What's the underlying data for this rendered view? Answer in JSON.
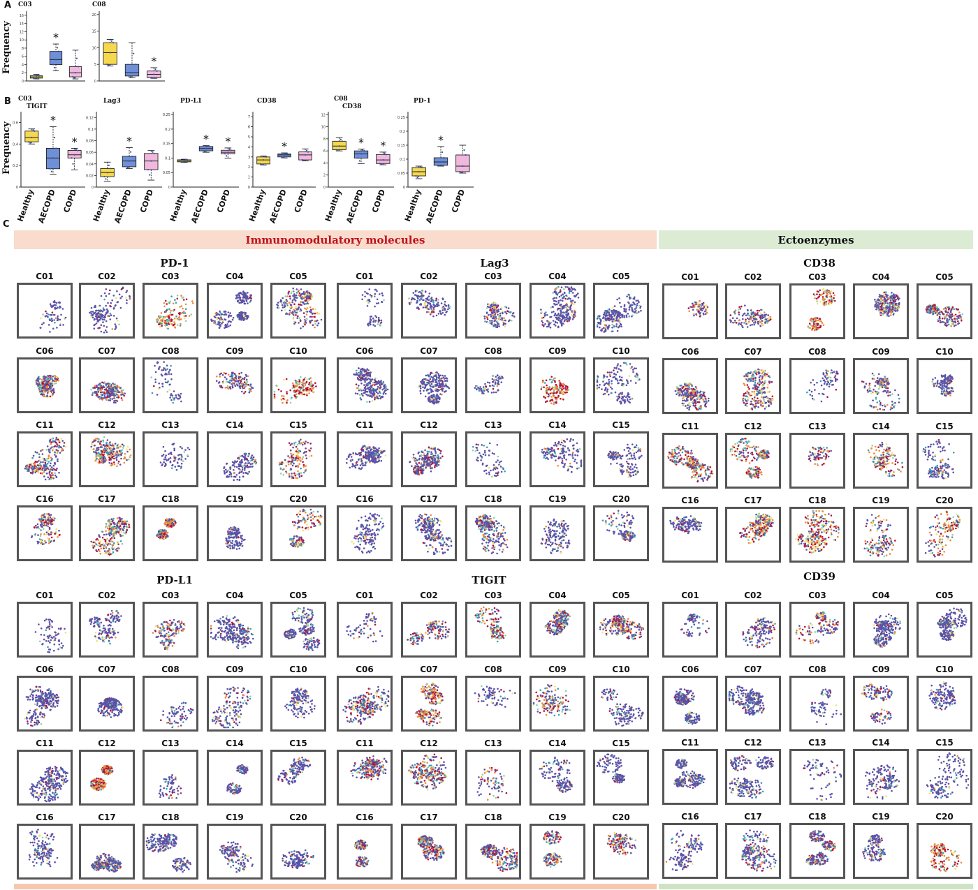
{
  "panels": {
    "A": "A",
    "B": "B",
    "C": "C"
  },
  "freq_label": "Frequency",
  "groups": [
    "Healthy",
    "AECOPD",
    "COPD"
  ],
  "colors": {
    "Healthy": "#f5d84e",
    "AECOPD": "#6f8fd6",
    "COPD": "#f0b8dc",
    "banner_left": "#f9dccd",
    "banner_right": "#dcecd4",
    "banner_left_text": "#c0111b",
    "banner_right_text": "#111111"
  },
  "chart_data": [
    {
      "type": "box",
      "panel": "A",
      "title": "C03",
      "ylim": [
        0,
        17
      ],
      "yticks": [
        0,
        2,
        4,
        6,
        8,
        10,
        12,
        14,
        16
      ],
      "series": [
        {
          "group": "Healthy",
          "min": 0.5,
          "q1": 0.7,
          "median": 1.0,
          "q3": 1.3,
          "max": 1.6,
          "star": false
        },
        {
          "group": "AECOPD",
          "min": 2.5,
          "q1": 4.0,
          "median": 5.2,
          "q3": 7.2,
          "max": 9.0,
          "star": true
        },
        {
          "group": "COPD",
          "min": 0.5,
          "q1": 1.0,
          "median": 2.0,
          "q3": 3.5,
          "max": 7.5,
          "star": false
        }
      ]
    },
    {
      "type": "box",
      "panel": "A",
      "title": "C08",
      "ylim": [
        0,
        21
      ],
      "yticks": [
        0,
        5,
        10,
        15,
        20
      ],
      "series": [
        {
          "group": "Healthy",
          "min": 4.5,
          "q1": 5.0,
          "median": 8.5,
          "q3": 11.5,
          "max": 12.5,
          "star": false
        },
        {
          "group": "AECOPD",
          "min": 1.0,
          "q1": 1.5,
          "median": 2.5,
          "q3": 5.0,
          "max": 11.5,
          "star": false
        },
        {
          "group": "COPD",
          "min": 0.8,
          "q1": 1.0,
          "median": 2.0,
          "q3": 3.0,
          "max": 4.0,
          "star": true
        }
      ]
    },
    {
      "type": "box",
      "panel": "B",
      "supertitle": "C03",
      "title": "TIGIT",
      "ylim": [
        0,
        0.7
      ],
      "yticks": [
        0,
        0.2,
        0.4,
        0.6
      ],
      "series": [
        {
          "group": "Healthy",
          "min": 0.4,
          "q1": 0.42,
          "median": 0.46,
          "q3": 0.52,
          "max": 0.54,
          "star": false
        },
        {
          "group": "AECOPD",
          "min": 0.12,
          "q1": 0.17,
          "median": 0.27,
          "q3": 0.36,
          "max": 0.56,
          "star": true
        },
        {
          "group": "COPD",
          "min": 0.16,
          "q1": 0.27,
          "median": 0.3,
          "q3": 0.34,
          "max": 0.36,
          "star": true
        }
      ]
    },
    {
      "type": "box",
      "panel": "B",
      "title": "Lag3",
      "ylim": [
        0,
        0.13
      ],
      "yticks": [
        0,
        0.02,
        0.04,
        0.06,
        0.08,
        0.1,
        0.12
      ],
      "series": [
        {
          "group": "Healthy",
          "min": 0.01,
          "q1": 0.018,
          "median": 0.025,
          "q3": 0.032,
          "max": 0.043,
          "star": false
        },
        {
          "group": "AECOPD",
          "min": 0.032,
          "q1": 0.035,
          "median": 0.045,
          "q3": 0.053,
          "max": 0.068,
          "star": true
        },
        {
          "group": "COPD",
          "min": 0.012,
          "q1": 0.03,
          "median": 0.045,
          "q3": 0.058,
          "max": 0.063,
          "star": false
        }
      ]
    },
    {
      "type": "box",
      "panel": "B",
      "title": "PD-L1",
      "ylim": [
        0,
        0.26
      ],
      "yticks": [
        0,
        0.05,
        0.1,
        0.15,
        0.2,
        0.25
      ],
      "series": [
        {
          "group": "Healthy",
          "min": 0.085,
          "q1": 0.087,
          "median": 0.09,
          "q3": 0.094,
          "max": 0.096,
          "star": false
        },
        {
          "group": "AECOPD",
          "min": 0.12,
          "q1": 0.125,
          "median": 0.133,
          "q3": 0.14,
          "max": 0.143,
          "star": true
        },
        {
          "group": "COPD",
          "min": 0.1,
          "q1": 0.115,
          "median": 0.12,
          "q3": 0.127,
          "max": 0.135,
          "star": true
        }
      ]
    },
    {
      "type": "box",
      "panel": "B",
      "title": "CD38",
      "ylim": [
        0,
        7.5
      ],
      "yticks": [
        0,
        1,
        2,
        3,
        4,
        5,
        6,
        7
      ],
      "series": [
        {
          "group": "Healthy",
          "min": 2.2,
          "q1": 2.3,
          "median": 2.7,
          "q3": 3.0,
          "max": 3.1,
          "star": false
        },
        {
          "group": "AECOPD",
          "min": 2.9,
          "q1": 3.0,
          "median": 3.2,
          "q3": 3.3,
          "max": 3.4,
          "star": true
        },
        {
          "group": "COPD",
          "min": 2.6,
          "q1": 2.7,
          "median": 3.2,
          "q3": 3.5,
          "max": 3.8,
          "star": false
        }
      ]
    },
    {
      "type": "box",
      "panel": "B",
      "supertitle": "C08",
      "title": "CD38",
      "ylim": [
        0,
        12.5
      ],
      "yticks": [
        0,
        2,
        4,
        6,
        8,
        10,
        12
      ],
      "series": [
        {
          "group": "Healthy",
          "min": 6.0,
          "q1": 6.2,
          "median": 6.8,
          "q3": 7.6,
          "max": 8.2,
          "star": false
        },
        {
          "group": "AECOPD",
          "min": 3.9,
          "q1": 4.8,
          "median": 5.5,
          "q3": 6.0,
          "max": 6.3,
          "star": true
        },
        {
          "group": "COPD",
          "min": 3.7,
          "q1": 3.9,
          "median": 4.5,
          "q3": 5.4,
          "max": 5.8,
          "star": true
        }
      ]
    },
    {
      "type": "box",
      "panel": "B",
      "title": "PD-1",
      "ylim": [
        0,
        0.27
      ],
      "yticks": [
        0,
        0.05,
        0.1,
        0.15,
        0.2,
        0.25
      ],
      "series": [
        {
          "group": "Healthy",
          "min": 0.03,
          "q1": 0.04,
          "median": 0.055,
          "q3": 0.07,
          "max": 0.075,
          "star": false
        },
        {
          "group": "AECOPD",
          "min": 0.075,
          "q1": 0.078,
          "median": 0.09,
          "q3": 0.105,
          "max": 0.145,
          "star": true
        },
        {
          "group": "COPD",
          "min": 0.05,
          "q1": 0.055,
          "median": 0.075,
          "q3": 0.115,
          "max": 0.15,
          "star": false
        }
      ]
    }
  ],
  "banner_left": "Immunomodulatory molecules",
  "banner_right": "Ectoenzymes",
  "markers": [
    "PD-1",
    "Lag3",
    "CD38",
    "PD-L1",
    "TIGIT",
    "CD39"
  ],
  "clusters": [
    "C01",
    "C02",
    "C03",
    "C04",
    "C05",
    "C06",
    "C07",
    "C08",
    "C09",
    "C10",
    "C11",
    "C12",
    "C13",
    "C14",
    "C15",
    "C16",
    "C17",
    "C18",
    "C19",
    "C20"
  ],
  "palette": {
    "low": "#5b52a8",
    "mid1": "#3aa0b8",
    "mid2": "#8fd1a4",
    "mid3": "#f2e07a",
    "mid4": "#f08a3c",
    "high": "#b4123b"
  }
}
